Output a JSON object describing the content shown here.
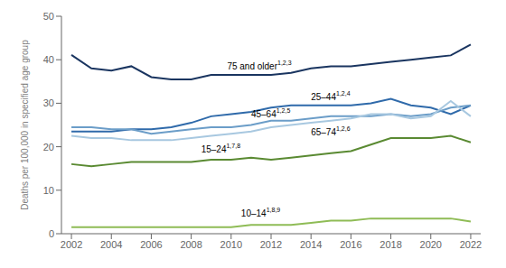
{
  "chart_data": {
    "type": "line",
    "x": [
      2002,
      2003,
      2004,
      2005,
      2006,
      2007,
      2008,
      2009,
      2010,
      2011,
      2012,
      2013,
      2014,
      2015,
      2016,
      2017,
      2018,
      2019,
      2020,
      2021,
      2022
    ],
    "series": [
      {
        "name": "75 and older",
        "color": "#1a3560",
        "values": [
          41.1,
          38.0,
          37.5,
          38.5,
          36.0,
          35.5,
          35.5,
          36.5,
          36.5,
          36.5,
          36.5,
          37.0,
          38.0,
          38.5,
          38.5,
          39.0,
          39.5,
          40.0,
          40.5,
          41.0,
          43.5
        ]
      },
      {
        "name": "25–44",
        "color": "#2f6aaa",
        "values": [
          23.5,
          23.5,
          23.5,
          24.0,
          24.0,
          24.5,
          25.5,
          27.0,
          27.5,
          28.0,
          29.0,
          29.5,
          29.5,
          29.5,
          29.5,
          30.0,
          31.0,
          29.5,
          29.0,
          27.5,
          29.5
        ]
      },
      {
        "name": "45–64",
        "color": "#6b9dc8",
        "values": [
          24.5,
          24.5,
          24.0,
          24.0,
          23.0,
          23.5,
          24.0,
          24.5,
          24.5,
          25.0,
          26.0,
          26.0,
          26.5,
          27.0,
          27.0,
          27.0,
          27.5,
          27.0,
          27.5,
          29.0,
          29.5
        ]
      },
      {
        "name": "65–74",
        "color": "#a8c8e0",
        "values": [
          22.5,
          22.0,
          22.0,
          21.5,
          21.5,
          21.5,
          22.0,
          22.5,
          23.0,
          23.5,
          24.5,
          25.0,
          25.5,
          26.0,
          26.5,
          27.5,
          27.5,
          26.5,
          27.0,
          30.5,
          27.0
        ]
      },
      {
        "name": "15–24",
        "color": "#5a8a32",
        "values": [
          16.0,
          15.5,
          16.0,
          16.5,
          16.5,
          16.5,
          16.5,
          17.0,
          17.0,
          17.5,
          17.0,
          17.5,
          18.0,
          18.5,
          19.0,
          20.5,
          22.0,
          22.0,
          22.0,
          22.5,
          21.0
        ]
      },
      {
        "name": "10–14",
        "color": "#8fbc56",
        "values": [
          1.5,
          1.5,
          1.5,
          1.5,
          1.5,
          1.5,
          1.5,
          1.5,
          1.5,
          2.0,
          2.0,
          2.0,
          2.5,
          3.0,
          3.0,
          3.5,
          3.5,
          3.5,
          3.5,
          3.5,
          2.8
        ]
      }
    ],
    "annotations": [
      {
        "text": "75 and older",
        "superscript": "1,2,3",
        "x": 2009.8,
        "y": 38.5
      },
      {
        "text": "25–44",
        "superscript": "1,2,4",
        "x": 2014.0,
        "y": 31.5
      },
      {
        "text": "45–64",
        "superscript": "1,2,5",
        "x": 2011.0,
        "y": 27.5
      },
      {
        "text": "65–74",
        "superscript": "1,2,6",
        "x": 2014.0,
        "y": 23.5
      },
      {
        "text": "15–24",
        "superscript": "1,7,8",
        "x": 2008.5,
        "y": 19.5
      },
      {
        "text": "10–14",
        "superscript": "1,8,9",
        "x": 2010.5,
        "y": 4.8
      }
    ],
    "ylabel": "Deaths per 100,000 in specified age group",
    "xlim": [
      2001.5,
      2022.5
    ],
    "xticks": [
      2002,
      2004,
      2006,
      2008,
      2010,
      2012,
      2014,
      2016,
      2018,
      2020,
      2022
    ],
    "ylim": [
      0,
      50
    ],
    "yticks": [
      0,
      10,
      20,
      30,
      40,
      50
    ],
    "grid": false
  }
}
